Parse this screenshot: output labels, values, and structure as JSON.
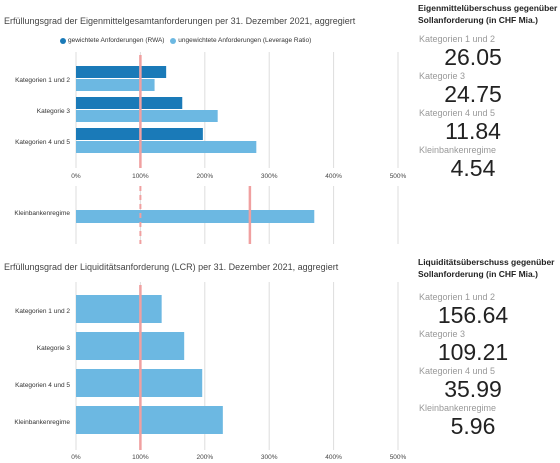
{
  "chart_data": [
    {
      "type": "bar",
      "title": "Erfüllungsgrad der Eigenmittelgesamtanforderungen per 31. Dezember 2021, aggregiert",
      "categories": [
        "Kategorien 1 und 2",
        "Kategorie 3",
        "Kategorien 4 und 5"
      ],
      "series": [
        {
          "name": "gewichtete Anforderungen (RWA)",
          "color": "#1a7ab8",
          "values": [
            140,
            165,
            197
          ]
        },
        {
          "name": "ungewichtete Anforderungen (Leverage Ratio)",
          "color": "#6cb8e2",
          "values": [
            122,
            220,
            280
          ]
        }
      ],
      "xticks": [
        "0%",
        "100%",
        "200%",
        "300%",
        "400%",
        "500%"
      ],
      "xlim": [
        0,
        500
      ],
      "reference_line": 100,
      "subchart": {
        "categories": [
          "Kleinbankenregime"
        ],
        "values": [
          370
        ],
        "reference_lines": [
          100,
          270
        ]
      }
    },
    {
      "type": "bar",
      "title": "Erfüllungsgrad der Liquiditätsanforderung (LCR) per 31. Dezember 2021, aggregiert",
      "categories": [
        "Kategorien 1 und 2",
        "Kategorie 3",
        "Kategorien 4 und 5",
        "Kleinbankenregime"
      ],
      "values": [
        133,
        168,
        196,
        228
      ],
      "color": "#6cb8e2",
      "xticks": [
        "0%",
        "100%",
        "200%",
        "300%",
        "400%",
        "500%"
      ],
      "xlim": [
        0,
        500
      ],
      "reference_line": 100
    }
  ],
  "panels": [
    {
      "title": "Eigenmittelüberschuss gegenüber Sollanforderung (in CHF Mia.)",
      "items": [
        {
          "label": "Kategorien 1 und 2",
          "value": "26.05"
        },
        {
          "label": "Kategorie 3",
          "value": "24.75"
        },
        {
          "label": "Kategorien 4 und 5",
          "value": "11.84"
        },
        {
          "label": "Kleinbankenregime",
          "value": "4.54"
        }
      ]
    },
    {
      "title": "Liquiditätsüberschuss gegenüber Sollanforderung (in CHF Mia.)",
      "items": [
        {
          "label": "Kategorien 1 und 2",
          "value": "156.64"
        },
        {
          "label": "Kategorie 3",
          "value": "109.21"
        },
        {
          "label": "Kategorien 4 und 5",
          "value": "35.99"
        },
        {
          "label": "Kleinbankenregime",
          "value": "5.96"
        }
      ]
    }
  ],
  "colors": {
    "reference": "#f0a0a0",
    "grid": "#dddddd"
  }
}
